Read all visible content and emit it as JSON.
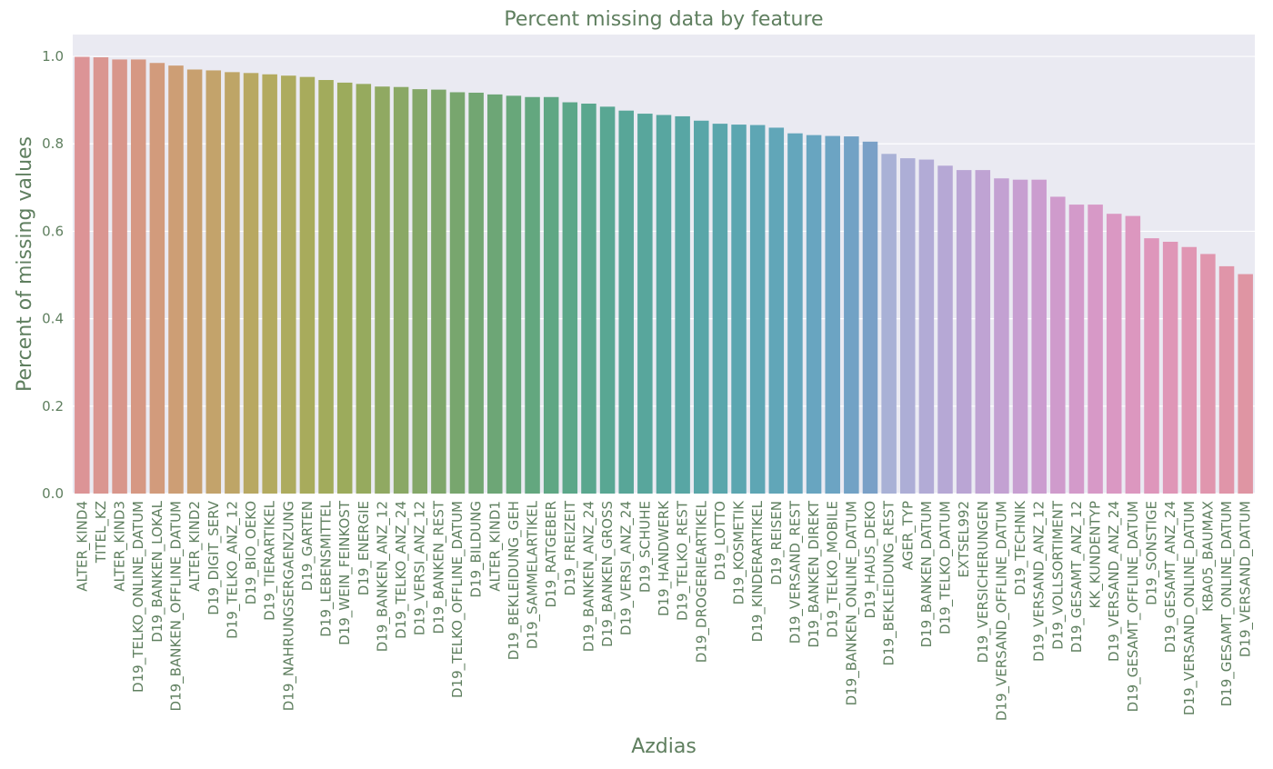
{
  "chart_data": {
    "type": "bar",
    "title": "Percent missing data by feature",
    "xlabel": "Azdias",
    "ylabel": "Percent of missing values",
    "ylim": [
      0,
      1.05
    ],
    "yticks": [
      "0.0",
      "0.2",
      "0.4",
      "0.6",
      "0.8",
      "1.0"
    ],
    "grid": true,
    "categories": [
      "ALTER_KIND4",
      "TITEL_KZ",
      "ALTER_KIND3",
      "D19_TELKO_ONLINE_DATUM",
      "D19_BANKEN_LOKAL",
      "D19_BANKEN_OFFLINE_DATUM",
      "ALTER_KIND2",
      "D19_DIGIT_SERV",
      "D19_TELKO_ANZ_12",
      "D19_BIO_OEKO",
      "D19_TIERARTIKEL",
      "D19_NAHRUNGSERGAENZUNG",
      "D19_GARTEN",
      "D19_LEBENSMITTEL",
      "D19_WEIN_FEINKOST",
      "D19_ENERGIE",
      "D19_BANKEN_ANZ_12",
      "D19_TELKO_ANZ_24",
      "D19_VERSI_ANZ_12",
      "D19_BANKEN_REST",
      "D19_TELKO_OFFLINE_DATUM",
      "D19_BILDUNG",
      "ALTER_KIND1",
      "D19_BEKLEIDUNG_GEH",
      "D19_SAMMELARTIKEL",
      "D19_RATGEBER",
      "D19_FREIZEIT",
      "D19_BANKEN_ANZ_24",
      "D19_BANKEN_GROSS",
      "D19_VERSI_ANZ_24",
      "D19_SCHUHE",
      "D19_HANDWERK",
      "D19_TELKO_REST",
      "D19_DROGERIEARTIKEL",
      "D19_LOTTO",
      "D19_KOSMETIK",
      "D19_KINDERARTIKEL",
      "D19_REISEN",
      "D19_VERSAND_REST",
      "D19_BANKEN_DIREKT",
      "D19_TELKO_MOBILE",
      "D19_BANKEN_ONLINE_DATUM",
      "D19_HAUS_DEKO",
      "D19_BEKLEIDUNG_REST",
      "AGER_TYP",
      "D19_BANKEN_DATUM",
      "D19_TELKO_DATUM",
      "EXTSEL992",
      "D19_VERSICHERUNGEN",
      "D19_VERSAND_OFFLINE_DATUM",
      "D19_TECHNIK",
      "D19_VERSAND_ANZ_12",
      "D19_VOLLSORTIMENT",
      "D19_GESAMT_ANZ_12",
      "KK_KUNDENTYP",
      "D19_VERSAND_ANZ_24",
      "D19_GESAMT_OFFLINE_DATUM",
      "D19_SONSTIGE",
      "D19_GESAMT_ANZ_24",
      "D19_VERSAND_ONLINE_DATUM",
      "KBA05_BAUMAX",
      "D19_GESAMT_ONLINE_DATUM",
      "D19_VERSAND_DATUM"
    ],
    "values": [
      0.999,
      0.998,
      0.993,
      0.993,
      0.985,
      0.979,
      0.97,
      0.968,
      0.964,
      0.962,
      0.959,
      0.956,
      0.953,
      0.946,
      0.94,
      0.937,
      0.931,
      0.93,
      0.925,
      0.924,
      0.918,
      0.917,
      0.913,
      0.91,
      0.907,
      0.907,
      0.895,
      0.892,
      0.885,
      0.876,
      0.869,
      0.866,
      0.863,
      0.853,
      0.846,
      0.844,
      0.843,
      0.837,
      0.824,
      0.82,
      0.818,
      0.817,
      0.805,
      0.777,
      0.767,
      0.764,
      0.75,
      0.74,
      0.74,
      0.721,
      0.718,
      0.718,
      0.679,
      0.661,
      0.661,
      0.64,
      0.635,
      0.584,
      0.576,
      0.564,
      0.548,
      0.52,
      0.502
    ],
    "colors": [
      "#dc9496",
      "#da9691",
      "#d8968b",
      "#d69883",
      "#d29b7c",
      "#cd9e75",
      "#c8a06f",
      "#c3a36b",
      "#bea567",
      "#b8a862",
      "#b3aa5f",
      "#adab5e",
      "#a8ab5c",
      "#a2ab5c",
      "#9cab5c",
      "#96aa5e",
      "#90a962",
      "#8aa865",
      "#84a768",
      "#7ea66b",
      "#78a66e",
      "#72a672",
      "#6da676",
      "#68a77a",
      "#63a77f",
      "#5fa784",
      "#5ca789",
      "#5aa78e",
      "#59a793",
      "#58a698",
      "#58a69c",
      "#58a6a0",
      "#58a6a4",
      "#59a6a8",
      "#5aa6ac",
      "#5ca6b0",
      "#5ea6b4",
      "#61a6b8",
      "#64a6bc",
      "#68a5c0",
      "#6ca4c3",
      "#72a2c5",
      "#7aa0c7",
      "#a9b1d6",
      "#adaed6",
      "#b2abd6",
      "#b6a8d5",
      "#baa5d4",
      "#bfa3d3",
      "#c3a1d2",
      "#c79fd1",
      "#cb9dcf",
      "#cf9bcc",
      "#d39aca",
      "#d799c7",
      "#da98c3",
      "#dc97bf",
      "#de96bb",
      "#df96b7",
      "#e096b3",
      "#e096ae",
      "#e095a9",
      "#df95a3"
    ]
  }
}
